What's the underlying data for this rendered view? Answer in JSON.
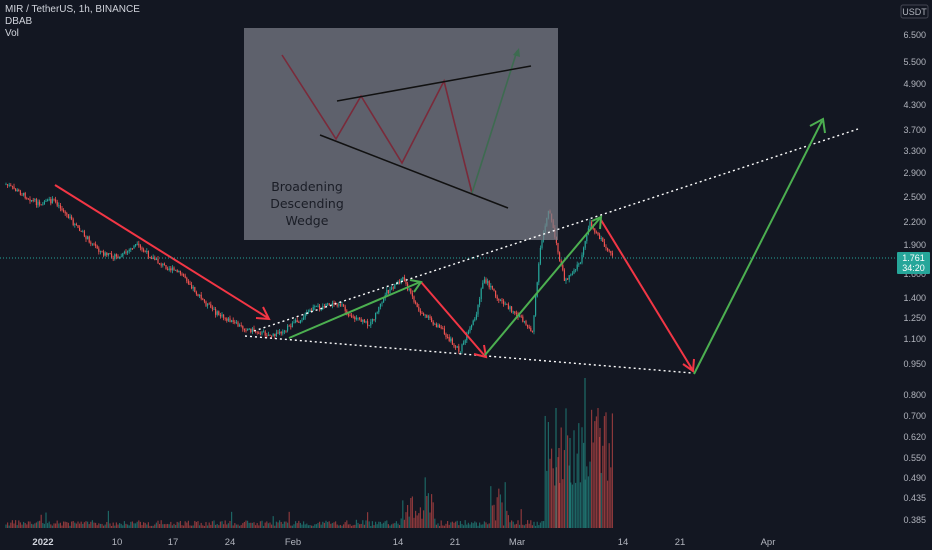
{
  "header": {
    "symbol_line": "MIR / TetherUS, 1h, BINANCE",
    "indicator_1": "DBAB",
    "indicator_2": "Vol"
  },
  "price_axis": {
    "unit": "USDT",
    "labels": [
      "6.500",
      "5.500",
      "4.900",
      "4.300",
      "3.700",
      "3.300",
      "2.900",
      "2.500",
      "2.200",
      "1.900",
      "1.600",
      "1.400",
      "1.250",
      "1.100",
      "0.950",
      "0.800",
      "0.700",
      "0.620",
      "0.550",
      "0.490",
      "0.435",
      "0.385"
    ],
    "last_price": "1.761",
    "countdown": "34:20"
  },
  "time_axis": {
    "labels": [
      "2022",
      "10",
      "17",
      "24",
      "Feb",
      "14",
      "21",
      "Mar",
      "14",
      "21",
      "Apr"
    ]
  },
  "colors": {
    "background": "#131722",
    "candle_up": "#26a69a",
    "candle_down": "#ef5350",
    "arrow_red": "#f23645",
    "arrow_green": "#4caf50",
    "wedge_line": "#ffffff",
    "pattern_box": "#787b86",
    "price_tag": "#26a69a"
  },
  "pattern_box": {
    "text_line1": "Broadening",
    "text_line2": "Descending",
    "text_line3": "Wedge"
  },
  "chart_data": {
    "type": "candlestick",
    "title": "MIR / TetherUS, 1h, BINANCE",
    "y_scale": "log",
    "ylim": [
      0.36,
      7.0
    ],
    "xlim": [
      "2021-12-29",
      "2022-04-14"
    ],
    "series": [
      {
        "name": "MIR / TetherUS",
        "points": [
          {
            "x": "2021-12-29",
            "y": 2.75
          },
          {
            "x": "2022-01-02",
            "y": 2.45
          },
          {
            "x": "2022-01-04",
            "y": 2.5
          },
          {
            "x": "2022-01-07",
            "y": 2.1
          },
          {
            "x": "2022-01-10",
            "y": 1.82
          },
          {
            "x": "2022-01-12",
            "y": 1.78
          },
          {
            "x": "2022-01-14",
            "y": 1.92
          },
          {
            "x": "2022-01-17",
            "y": 1.72
          },
          {
            "x": "2022-01-20",
            "y": 1.6
          },
          {
            "x": "2022-01-22",
            "y": 1.4
          },
          {
            "x": "2022-01-24",
            "y": 1.28
          },
          {
            "x": "2022-01-27",
            "y": 1.18
          },
          {
            "x": "2022-01-29",
            "y": 1.15
          },
          {
            "x": "2022-01-31",
            "y": 1.12
          },
          {
            "x": "2022-02-03",
            "y": 1.22
          },
          {
            "x": "2022-02-05",
            "y": 1.32
          },
          {
            "x": "2022-02-08",
            "y": 1.36
          },
          {
            "x": "2022-02-10",
            "y": 1.24
          },
          {
            "x": "2022-02-12",
            "y": 1.2
          },
          {
            "x": "2022-02-14",
            "y": 1.45
          },
          {
            "x": "2022-02-16",
            "y": 1.58
          },
          {
            "x": "2022-02-18",
            "y": 1.3
          },
          {
            "x": "2022-02-21",
            "y": 1.15
          },
          {
            "x": "2022-02-23",
            "y": 1.02
          },
          {
            "x": "2022-02-25",
            "y": 1.25
          },
          {
            "x": "2022-02-26",
            "y": 1.58
          },
          {
            "x": "2022-02-28",
            "y": 1.38
          },
          {
            "x": "2022-03-02",
            "y": 1.28
          },
          {
            "x": "2022-03-04",
            "y": 1.15
          },
          {
            "x": "2022-03-05",
            "y": 1.9
          },
          {
            "x": "2022-03-06",
            "y": 2.4
          },
          {
            "x": "2022-03-07",
            "y": 1.9
          },
          {
            "x": "2022-03-08",
            "y": 1.55
          },
          {
            "x": "2022-03-10",
            "y": 1.75
          },
          {
            "x": "2022-03-11",
            "y": 2.2
          },
          {
            "x": "2022-03-12",
            "y": 2.05
          },
          {
            "x": "2022-03-13",
            "y": 1.9
          },
          {
            "x": "2022-03-14",
            "y": 1.761
          }
        ]
      }
    ]
  }
}
